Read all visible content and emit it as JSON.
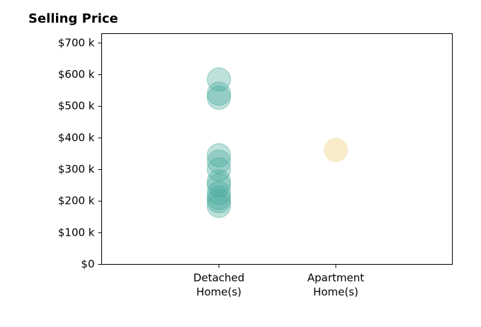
{
  "chart_data": {
    "type": "scatter",
    "title": "Selling Price",
    "xlabel": "",
    "ylabel": "",
    "categories": [
      "Detached\nHome(s)",
      "Apartment\nHome(s)"
    ],
    "ylim": [
      0,
      730000
    ],
    "yticks": [
      {
        "value": 0,
        "label": "$0"
      },
      {
        "value": 100000,
        "label": "$100 k"
      },
      {
        "value": 200000,
        "label": "$200 k"
      },
      {
        "value": 300000,
        "label": "$300 k"
      },
      {
        "value": 400000,
        "label": "$400 k"
      },
      {
        "value": 500000,
        "label": "$500 k"
      },
      {
        "value": 600000,
        "label": "$600 k"
      },
      {
        "value": 700000,
        "label": "$700 k"
      }
    ],
    "grid": false,
    "series": [
      {
        "category": "Detached\nHome(s)",
        "color": "#45a89a",
        "values": [
          585000,
          540000,
          527000,
          345000,
          325000,
          300000,
          262000,
          250000,
          225000,
          210000,
          200000,
          185000
        ]
      },
      {
        "category": "Apartment\nHome(s)",
        "color": "#f5dfa8",
        "values": [
          362000
        ]
      }
    ]
  }
}
